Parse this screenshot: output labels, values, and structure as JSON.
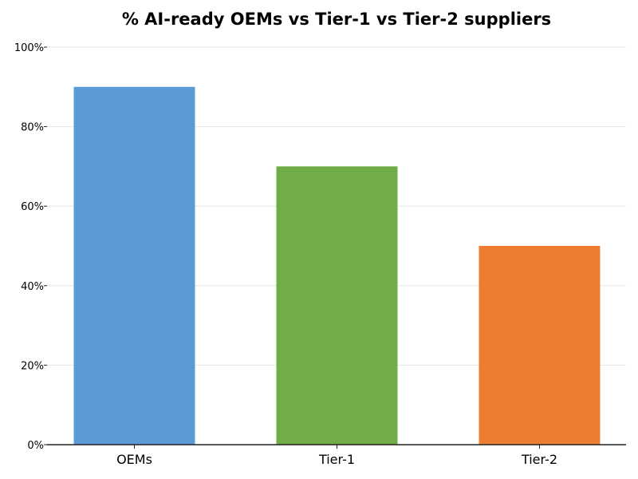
{
  "chart_data": {
    "type": "bar",
    "title": "% AI-ready OEMs vs Tier-1 vs Tier-2 suppliers",
    "xlabel": "",
    "ylabel": "",
    "categories": [
      "OEMs",
      "Tier-1",
      "Tier-2"
    ],
    "values": [
      90,
      70,
      50
    ],
    "colors": [
      "#5b9bd5",
      "#70ad47",
      "#ed7d31"
    ],
    "ylim": [
      0,
      100
    ],
    "yticks": [
      0,
      20,
      40,
      60,
      80,
      100
    ],
    "ytick_labels": [
      "0%",
      "20%",
      "40%",
      "60%",
      "80%",
      "100%"
    ],
    "grid": "horizontal",
    "grid_color": "#e6e6e6",
    "axis_color": "#222222"
  }
}
